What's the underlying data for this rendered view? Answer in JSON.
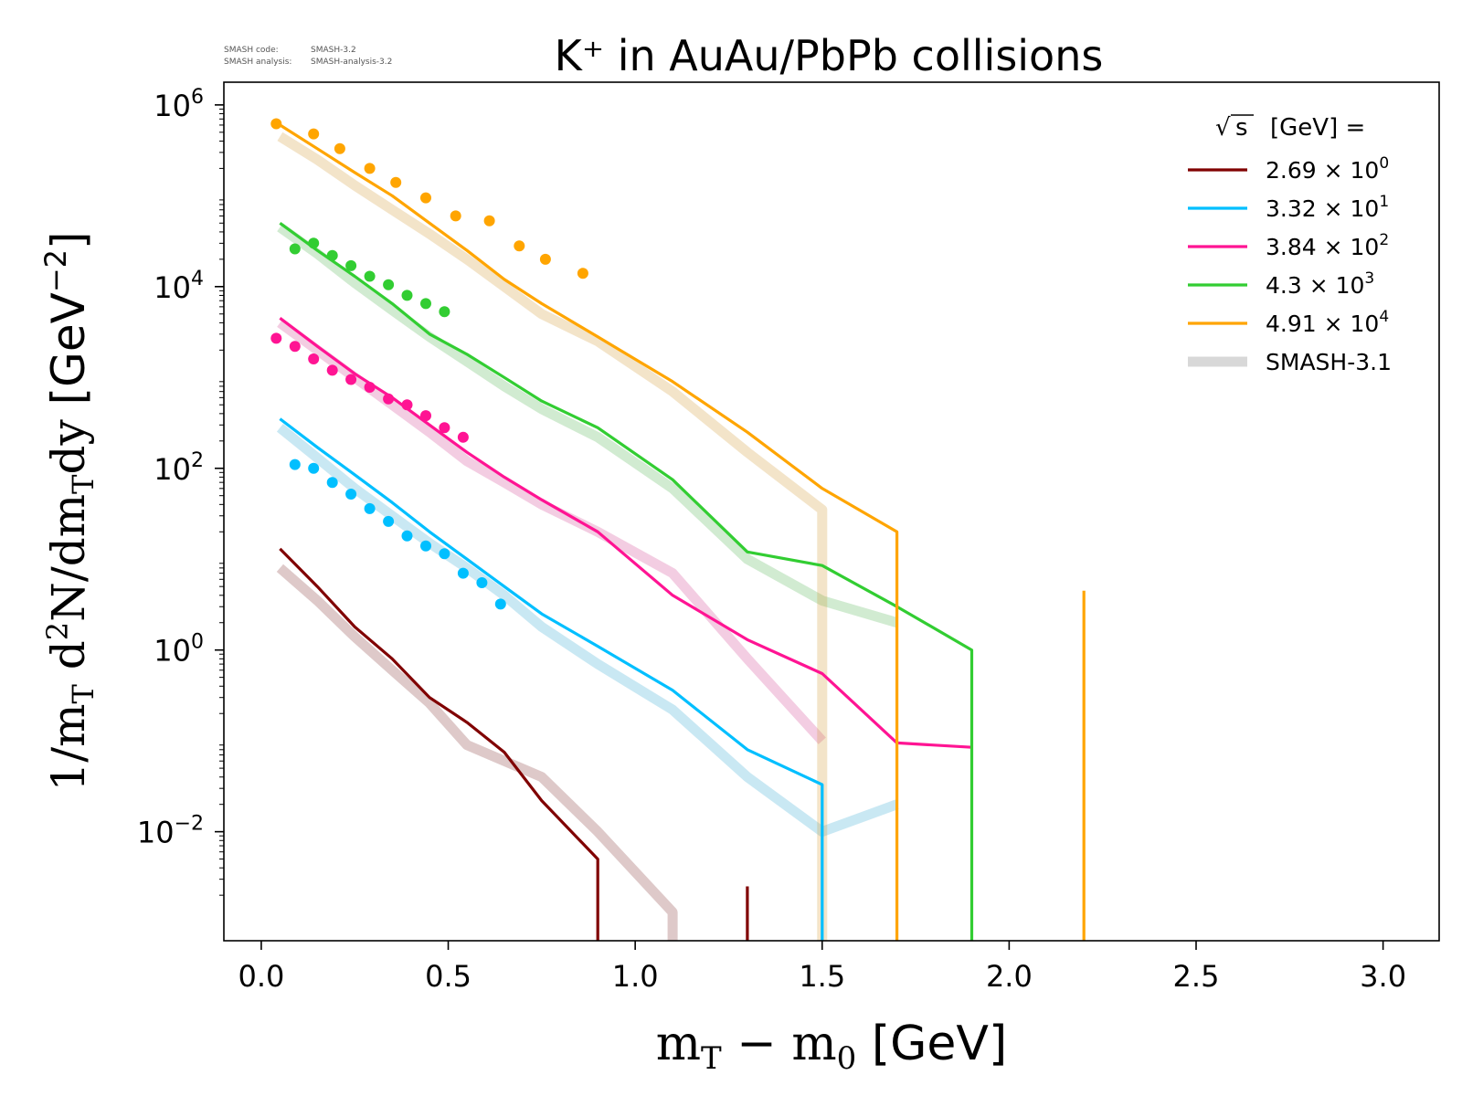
{
  "notes": [
    {
      "key": "SMASH code:",
      "value": "SMASH-3.2"
    },
    {
      "key": "SMASH analysis:",
      "value": "SMASH-analysis-3.2"
    }
  ],
  "chart_data": {
    "type": "line",
    "title": "K⁺ in AuAu/PbPb collisions",
    "xlabel": "mT − m0 [GeV]",
    "ylabel": "1/mT d²N/dmTdy [GeV⁻²]",
    "xlim": [
      -0.1,
      3.15
    ],
    "ylim_log10": [
      -3.2,
      6.25
    ],
    "y_scale": "log",
    "x_ticks": [
      {
        "value": 0.0,
        "label": "0.0"
      },
      {
        "value": 0.5,
        "label": "0.5"
      },
      {
        "value": 1.0,
        "label": "1.0"
      },
      {
        "value": 1.5,
        "label": "1.5"
      },
      {
        "value": 2.0,
        "label": "2.0"
      },
      {
        "value": 2.5,
        "label": "2.5"
      },
      {
        "value": 3.0,
        "label": "3.0"
      }
    ],
    "y_ticks": [
      {
        "exp": 6,
        "label": "10",
        "sup": "6"
      },
      {
        "exp": 4,
        "label": "10",
        "sup": "4"
      },
      {
        "exp": 2,
        "label": "10",
        "sup": "2"
      },
      {
        "exp": 0,
        "label": "10",
        "sup": "0"
      },
      {
        "exp": -2,
        "label": "10",
        "sup": "−2"
      }
    ],
    "grid": false,
    "legend": {
      "placement": "top-right",
      "title": "[GeV] =",
      "title_sqrt": "s",
      "entries": [
        {
          "mant": "2.69 × 10",
          "exp": "0"
        },
        {
          "mant": "3.32 × 10",
          "exp": "1"
        },
        {
          "mant": "3.84 × 10",
          "exp": "2"
        },
        {
          "mant": "4.3 × 10",
          "exp": "3"
        },
        {
          "mant": "4.91 × 10",
          "exp": "4"
        },
        {
          "mant": "SMASH-3.1",
          "exp": ""
        }
      ]
    },
    "series": [
      {
        "color": "#800000",
        "smash32": [
          [
            0.05,
            13.0
          ],
          [
            0.15,
            5.0
          ],
          [
            0.25,
            1.8
          ],
          [
            0.35,
            0.8
          ],
          [
            0.45,
            0.3
          ],
          [
            0.55,
            0.16
          ],
          [
            0.65,
            0.075
          ],
          [
            0.75,
            0.022
          ],
          [
            0.9,
            0.005
          ],
          [
            0.9,
            0.00063
          ]
        ],
        "smash32_extra": [
          [
            [
              1.3,
              0.0025
            ],
            [
              1.3,
              0.00063
            ]
          ]
        ],
        "smash31": [
          [
            0.05,
            8.0
          ],
          [
            0.15,
            3.5
          ],
          [
            0.25,
            1.4
          ],
          [
            0.35,
            0.6
          ],
          [
            0.45,
            0.26
          ],
          [
            0.55,
            0.09
          ],
          [
            0.65,
            0.06
          ],
          [
            0.75,
            0.04
          ],
          [
            0.9,
            0.01
          ],
          [
            1.1,
            0.0013
          ],
          [
            1.1,
            0.00063
          ]
        ],
        "data": []
      },
      {
        "color": "#00BFFF",
        "smash32": [
          [
            0.05,
            350.0
          ],
          [
            0.15,
            170.0
          ],
          [
            0.25,
            85.0
          ],
          [
            0.35,
            42.0
          ],
          [
            0.45,
            20.0
          ],
          [
            0.55,
            10.0
          ],
          [
            0.65,
            5.0
          ],
          [
            0.75,
            2.5
          ],
          [
            0.9,
            1.1
          ],
          [
            1.1,
            0.36
          ],
          [
            1.3,
            0.08
          ],
          [
            1.5,
            0.033
          ],
          [
            1.5,
            0.00063
          ]
        ],
        "smash32_extra": [],
        "smash31": [
          [
            0.05,
            280.0
          ],
          [
            0.15,
            130.0
          ],
          [
            0.25,
            60.0
          ],
          [
            0.35,
            30.0
          ],
          [
            0.45,
            15.0
          ],
          [
            0.55,
            8.0
          ],
          [
            0.65,
            4.0
          ],
          [
            0.75,
            1.8
          ],
          [
            0.9,
            0.7
          ],
          [
            1.1,
            0.22
          ],
          [
            1.3,
            0.04
          ],
          [
            1.5,
            0.01
          ],
          [
            1.7,
            0.02
          ]
        ],
        "data": [
          [
            0.09,
            110.0
          ],
          [
            0.14,
            100.0
          ],
          [
            0.19,
            70.0
          ],
          [
            0.24,
            52.0
          ],
          [
            0.29,
            36.0
          ],
          [
            0.34,
            26.0
          ],
          [
            0.39,
            18.0
          ],
          [
            0.44,
            14.0
          ],
          [
            0.49,
            11.5
          ],
          [
            0.54,
            7.0
          ],
          [
            0.59,
            5.5
          ],
          [
            0.64,
            3.2
          ]
        ]
      },
      {
        "color": "#FF1493",
        "smash32": [
          [
            0.05,
            4500.0
          ],
          [
            0.15,
            2200.0
          ],
          [
            0.25,
            1100.0
          ],
          [
            0.35,
            600.0
          ],
          [
            0.45,
            300.0
          ],
          [
            0.55,
            150.0
          ],
          [
            0.65,
            80.0
          ],
          [
            0.75,
            45.0
          ],
          [
            0.9,
            20.0
          ],
          [
            1.1,
            4.0
          ],
          [
            1.3,
            1.3
          ],
          [
            1.5,
            0.55
          ],
          [
            1.7,
            0.095
          ],
          [
            1.9,
            0.085
          ]
        ],
        "smash32_extra": [],
        "smash31": [
          [
            0.05,
            4000.0
          ],
          [
            0.15,
            2000.0
          ],
          [
            0.25,
            1000.0
          ],
          [
            0.35,
            500.0
          ],
          [
            0.45,
            250.0
          ],
          [
            0.55,
            120.0
          ],
          [
            0.65,
            70.0
          ],
          [
            0.75,
            40.0
          ],
          [
            0.9,
            20.0
          ],
          [
            1.1,
            7.0
          ],
          [
            1.3,
            0.8
          ],
          [
            1.5,
            0.1
          ]
        ],
        "data": [
          [
            0.04,
            2700.0
          ],
          [
            0.09,
            2200.0
          ],
          [
            0.14,
            1600.0
          ],
          [
            0.19,
            1200.0
          ],
          [
            0.24,
            950.0
          ],
          [
            0.29,
            780.0
          ],
          [
            0.34,
            580.0
          ],
          [
            0.39,
            500.0
          ],
          [
            0.44,
            380.0
          ],
          [
            0.49,
            280.0
          ],
          [
            0.54,
            220.0
          ]
        ]
      },
      {
        "color": "#32CD32",
        "smash32": [
          [
            0.05,
            50000.0
          ],
          [
            0.15,
            25000.0
          ],
          [
            0.25,
            13000.0
          ],
          [
            0.35,
            6500.0
          ],
          [
            0.45,
            3000.0
          ],
          [
            0.55,
            1800.0
          ],
          [
            0.65,
            1000.0
          ],
          [
            0.75,
            550.0
          ],
          [
            0.9,
            280.0
          ],
          [
            1.1,
            75.0
          ],
          [
            1.3,
            12.0
          ],
          [
            1.5,
            8.5
          ],
          [
            1.7,
            3.0
          ],
          [
            1.9,
            1.0
          ],
          [
            1.9,
            0.00063
          ]
        ],
        "smash32_extra": [],
        "smash31": [
          [
            0.05,
            45000.0
          ],
          [
            0.15,
            23000.0
          ],
          [
            0.25,
            11000.0
          ],
          [
            0.35,
            5500.0
          ],
          [
            0.45,
            2800.0
          ],
          [
            0.55,
            1500.0
          ],
          [
            0.65,
            800.0
          ],
          [
            0.75,
            450.0
          ],
          [
            0.9,
            220.0
          ],
          [
            1.1,
            60.0
          ],
          [
            1.3,
            10.0
          ],
          [
            1.5,
            3.5
          ],
          [
            1.7,
            2.0
          ]
        ],
        "data": [
          [
            0.09,
            26000.0
          ],
          [
            0.14,
            30000.0
          ],
          [
            0.19,
            22000.0
          ],
          [
            0.24,
            17000.0
          ],
          [
            0.29,
            13000.0
          ],
          [
            0.34,
            10500.0
          ],
          [
            0.39,
            8000.0
          ],
          [
            0.44,
            6500.0
          ],
          [
            0.49,
            5300.0
          ]
        ]
      },
      {
        "color": "#FFA500",
        "smash32": [
          [
            0.05,
            600000.0
          ],
          [
            0.15,
            330000.0
          ],
          [
            0.25,
            180000.0
          ],
          [
            0.35,
            100000.0
          ],
          [
            0.45,
            50000.0
          ],
          [
            0.55,
            25000.0
          ],
          [
            0.65,
            12000.0
          ],
          [
            0.75,
            6500.0
          ],
          [
            0.9,
            2800.0
          ],
          [
            1.1,
            900.0
          ],
          [
            1.3,
            250.0
          ],
          [
            1.5,
            60.0
          ],
          [
            1.7,
            20.0
          ],
          [
            1.7,
            0.00063
          ]
        ],
        "smash32_extra": [
          [
            [
              2.2,
              4.5
            ],
            [
              2.2,
              0.00063
            ]
          ]
        ],
        "smash31": [
          [
            0.05,
            450000.0
          ],
          [
            0.15,
            250000.0
          ],
          [
            0.25,
            130000.0
          ],
          [
            0.35,
            70000.0
          ],
          [
            0.45,
            38000.0
          ],
          [
            0.55,
            20000.0
          ],
          [
            0.65,
            10000.0
          ],
          [
            0.75,
            5000.0
          ],
          [
            0.9,
            2500.0
          ],
          [
            1.1,
            700.0
          ],
          [
            1.3,
            150.0
          ],
          [
            1.5,
            35.0
          ],
          [
            1.5,
            0.00063
          ]
        ],
        "data": [
          [
            0.04,
            620000.0
          ],
          [
            0.14,
            480000.0
          ],
          [
            0.21,
            330000.0
          ],
          [
            0.29,
            200000.0
          ],
          [
            0.36,
            140000.0
          ],
          [
            0.44,
            95000.0
          ],
          [
            0.52,
            60000.0
          ],
          [
            0.61,
            53000.0
          ],
          [
            0.69,
            28000.0
          ],
          [
            0.76,
            20000.0
          ],
          [
            0.86,
            14000.0
          ]
        ]
      }
    ],
    "smash31_color": "#d8d8d8"
  }
}
